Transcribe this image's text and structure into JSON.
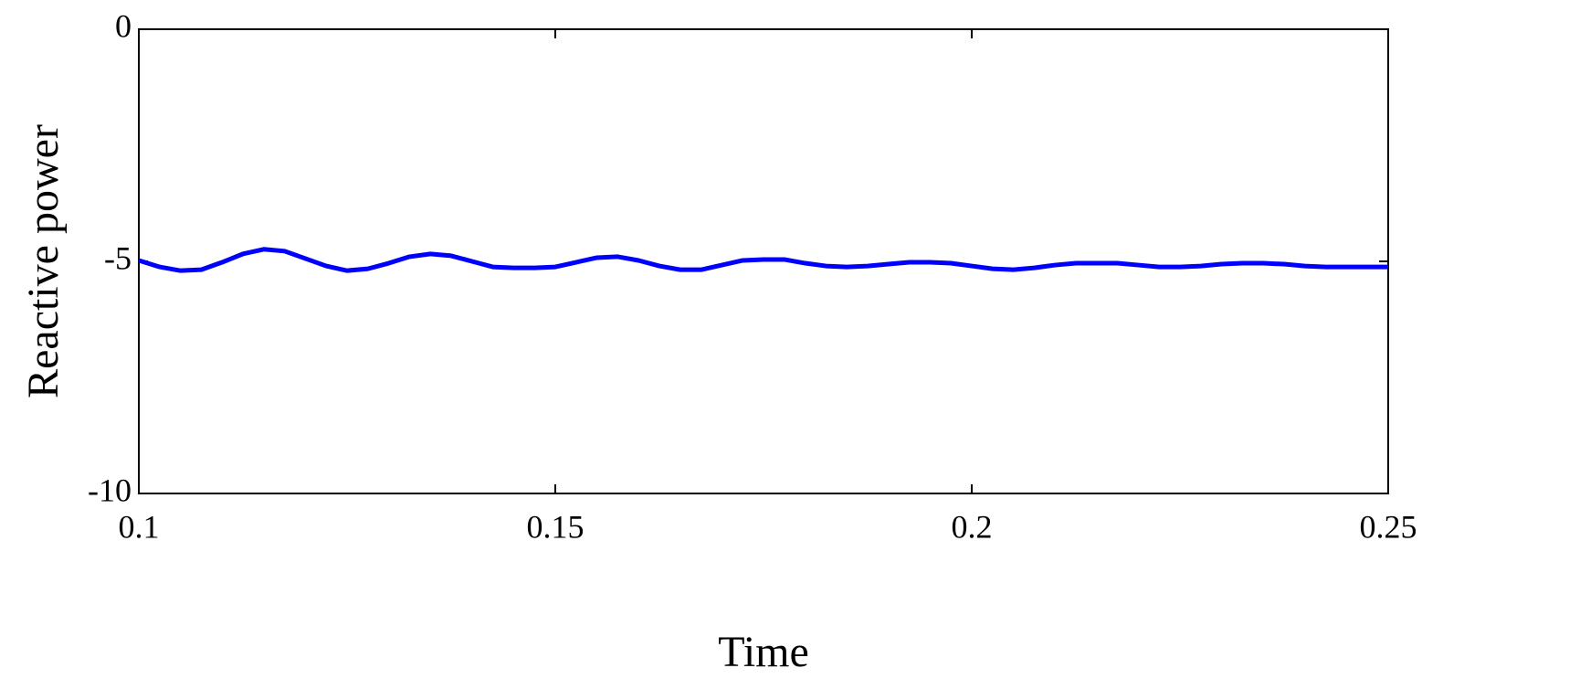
{
  "chart_data": {
    "type": "line",
    "xlabel": "Time",
    "ylabel": "Reactive power",
    "x": [
      0.1,
      0.1025,
      0.105,
      0.1075,
      0.11,
      0.1125,
      0.115,
      0.1175,
      0.12,
      0.1225,
      0.125,
      0.1275,
      0.13,
      0.1325,
      0.135,
      0.1375,
      0.14,
      0.1425,
      0.145,
      0.1475,
      0.15,
      0.1525,
      0.155,
      0.1575,
      0.16,
      0.1625,
      0.165,
      0.1675,
      0.17,
      0.1725,
      0.175,
      0.1775,
      0.18,
      0.1825,
      0.185,
      0.1875,
      0.19,
      0.1925,
      0.195,
      0.1975,
      0.2,
      0.2025,
      0.205,
      0.2075,
      0.21,
      0.2125,
      0.215,
      0.2175,
      0.22,
      0.2225,
      0.225,
      0.2275,
      0.23,
      0.2325,
      0.235,
      0.2375,
      0.24,
      0.2425,
      0.245,
      0.2475,
      0.25
    ],
    "values": [
      -4.98,
      -5.12,
      -5.2,
      -5.18,
      -5.02,
      -4.84,
      -4.74,
      -4.78,
      -4.94,
      -5.1,
      -5.2,
      -5.16,
      -5.04,
      -4.9,
      -4.84,
      -4.88,
      -5.0,
      -5.12,
      -5.14,
      -5.14,
      -5.12,
      -5.02,
      -4.92,
      -4.9,
      -4.98,
      -5.1,
      -5.18,
      -5.18,
      -5.08,
      -4.98,
      -4.96,
      -4.96,
      -5.04,
      -5.1,
      -5.12,
      -5.1,
      -5.06,
      -5.02,
      -5.02,
      -5.04,
      -5.1,
      -5.16,
      -5.18,
      -5.14,
      -5.08,
      -5.04,
      -5.04,
      -5.04,
      -5.08,
      -5.12,
      -5.12,
      -5.1,
      -5.06,
      -5.04,
      -5.04,
      -5.06,
      -5.1,
      -5.12,
      -5.12,
      -5.12,
      -5.12
    ],
    "color": "#0000ff",
    "xlim": [
      0.1,
      0.25
    ],
    "xticks": [
      0.1,
      0.15,
      0.2,
      0.25
    ],
    "ylim": [
      -10,
      0
    ],
    "yticks": [
      0,
      -5,
      -10
    ],
    "grid": false
  }
}
